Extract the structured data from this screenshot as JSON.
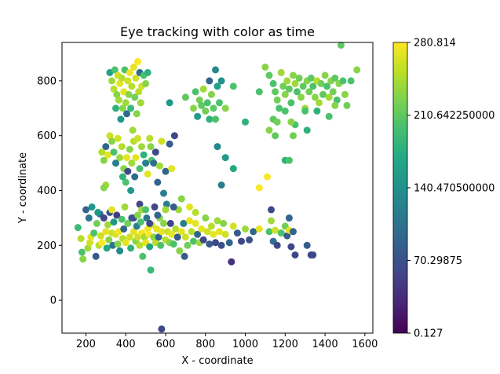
{
  "chart_data": {
    "type": "scatter",
    "title": "Eye tracking with color as time",
    "xlabel": "X - coordinate",
    "ylabel": "Y - coordinate",
    "xlim": [
      80,
      1640
    ],
    "ylim": [
      -120,
      940
    ],
    "xticks": [
      200,
      400,
      600,
      800,
      1000,
      1200,
      1400,
      1600
    ],
    "yticks": [
      0,
      200,
      400,
      600,
      800
    ],
    "grid": false,
    "colorbar": {
      "colormap": "viridis",
      "min": 0.127,
      "max": 280.814,
      "tick_values": [
        0.127,
        70.29875,
        140.4705,
        210.64225,
        280.814
      ],
      "tick_labels": [
        "0.127",
        "70.29875",
        "140.470500000",
        "210.642250000",
        "280.814"
      ]
    },
    "points": [
      [
        580,
        -105,
        60
      ],
      [
        160,
        265,
        190
      ],
      [
        175,
        225,
        250
      ],
      [
        180,
        175,
        200
      ],
      [
        185,
        150,
        230
      ],
      [
        200,
        330,
        90
      ],
      [
        210,
        190,
        240
      ],
      [
        215,
        300,
        110
      ],
      [
        220,
        210,
        260
      ],
      [
        225,
        230,
        270
      ],
      [
        230,
        340,
        150
      ],
      [
        240,
        245,
        200
      ],
      [
        250,
        160,
        80
      ],
      [
        255,
        280,
        220
      ],
      [
        265,
        200,
        250
      ],
      [
        270,
        315,
        90
      ],
      [
        275,
        235,
        260
      ],
      [
        280,
        210,
        280
      ],
      [
        290,
        300,
        60
      ],
      [
        300,
        250,
        270
      ],
      [
        305,
        190,
        170
      ],
      [
        310,
        275,
        240
      ],
      [
        315,
        220,
        230
      ],
      [
        320,
        320,
        70
      ],
      [
        330,
        245,
        260
      ],
      [
        335,
        200,
        110
      ],
      [
        340,
        285,
        150
      ],
      [
        350,
        240,
        265
      ],
      [
        355,
        310,
        50
      ],
      [
        360,
        205,
        230
      ],
      [
        365,
        250,
        275
      ],
      [
        370,
        180,
        130
      ],
      [
        380,
        295,
        200
      ],
      [
        385,
        225,
        250
      ],
      [
        390,
        260,
        90
      ],
      [
        395,
        340,
        240
      ],
      [
        400,
        210,
        270
      ],
      [
        410,
        280,
        220
      ],
      [
        420,
        230,
        260
      ],
      [
        425,
        190,
        180
      ],
      [
        430,
        300,
        80
      ],
      [
        440,
        250,
        270
      ],
      [
        450,
        215,
        230
      ],
      [
        455,
        270,
        120
      ],
      [
        460,
        230,
        260
      ],
      [
        470,
        200,
        250
      ],
      [
        475,
        285,
        200
      ],
      [
        480,
        245,
        275
      ],
      [
        485,
        160,
        200
      ],
      [
        495,
        230,
        240
      ],
      [
        500,
        210,
        270
      ],
      [
        505,
        300,
        110
      ],
      [
        510,
        260,
        275
      ],
      [
        515,
        240,
        280
      ],
      [
        520,
        195,
        160
      ],
      [
        525,
        110,
        190
      ],
      [
        530,
        275,
        260
      ],
      [
        540,
        230,
        230
      ],
      [
        545,
        340,
        60
      ],
      [
        550,
        210,
        250
      ],
      [
        555,
        260,
        270
      ],
      [
        565,
        230,
        90
      ],
      [
        570,
        300,
        230
      ],
      [
        575,
        200,
        200
      ],
      [
        580,
        250,
        270
      ],
      [
        590,
        280,
        230
      ],
      [
        600,
        220,
        250
      ],
      [
        605,
        350,
        120
      ],
      [
        610,
        250,
        260
      ],
      [
        620,
        210,
        230
      ],
      [
        625,
        280,
        60
      ],
      [
        630,
        240,
        270
      ],
      [
        640,
        205,
        200
      ],
      [
        650,
        260,
        250
      ],
      [
        660,
        230,
        80
      ],
      [
        665,
        330,
        240
      ],
      [
        670,
        180,
        230
      ],
      [
        680,
        250,
        270
      ],
      [
        690,
        280,
        120
      ],
      [
        695,
        160,
        80
      ],
      [
        700,
        230,
        260
      ],
      [
        710,
        200,
        220
      ],
      [
        720,
        290,
        270
      ],
      [
        730,
        250,
        250
      ],
      [
        740,
        215,
        200
      ],
      [
        750,
        280,
        270
      ],
      [
        760,
        240,
        90
      ],
      [
        770,
        210,
        240
      ],
      [
        780,
        260,
        270
      ],
      [
        790,
        220,
        60
      ],
      [
        800,
        300,
        230
      ],
      [
        810,
        250,
        260
      ],
      [
        820,
        205,
        80
      ],
      [
        830,
        270,
        250
      ],
      [
        840,
        240,
        270
      ],
      [
        850,
        210,
        60
      ],
      [
        860,
        290,
        240
      ],
      [
        870,
        250,
        270
      ],
      [
        880,
        200,
        70
      ],
      [
        890,
        280,
        230
      ],
      [
        900,
        240,
        260
      ],
      [
        920,
        210,
        90
      ],
      [
        930,
        140,
        40
      ],
      [
        940,
        270,
        260
      ],
      [
        960,
        245,
        80
      ],
      [
        980,
        215,
        60
      ],
      [
        1000,
        260,
        240
      ],
      [
        1020,
        220,
        70
      ],
      [
        1040,
        250,
        90
      ],
      [
        1070,
        260,
        270
      ],
      [
        1120,
        250,
        200
      ],
      [
        1130,
        290,
        240
      ],
      [
        1140,
        215,
        100
      ],
      [
        1150,
        255,
        260
      ],
      [
        1160,
        200,
        60
      ],
      [
        1180,
        245,
        200
      ],
      [
        1200,
        270,
        220
      ],
      [
        1210,
        235,
        80
      ],
      [
        1220,
        255,
        270
      ],
      [
        1230,
        195,
        60
      ],
      [
        1240,
        250,
        90
      ],
      [
        1250,
        165,
        60
      ],
      [
        1310,
        200,
        80
      ],
      [
        1330,
        165,
        50
      ],
      [
        1340,
        165,
        60
      ],
      [
        1130,
        330,
        60
      ],
      [
        1220,
        300,
        90
      ],
      [
        320,
        830,
        160
      ],
      [
        330,
        800,
        240
      ],
      [
        340,
        770,
        250
      ],
      [
        345,
        840,
        200
      ],
      [
        350,
        700,
        180
      ],
      [
        355,
        750,
        230
      ],
      [
        360,
        820,
        260
      ],
      [
        365,
        730,
        240
      ],
      [
        370,
        790,
        270
      ],
      [
        375,
        660,
        150
      ],
      [
        380,
        810,
        250
      ],
      [
        385,
        700,
        230
      ],
      [
        390,
        760,
        270
      ],
      [
        395,
        840,
        200
      ],
      [
        400,
        720,
        240
      ],
      [
        405,
        680,
        100
      ],
      [
        410,
        800,
        260
      ],
      [
        415,
        750,
        230
      ],
      [
        420,
        830,
        275
      ],
      [
        425,
        700,
        190
      ],
      [
        430,
        780,
        250
      ],
      [
        435,
        620,
        240
      ],
      [
        440,
        850,
        270
      ],
      [
        445,
        740,
        220
      ],
      [
        450,
        810,
        260
      ],
      [
        455,
        680,
        230
      ],
      [
        460,
        870,
        280
      ],
      [
        465,
        760,
        250
      ],
      [
        470,
        830,
        100
      ],
      [
        475,
        720,
        240
      ],
      [
        480,
        780,
        260
      ],
      [
        490,
        820,
        200
      ],
      [
        500,
        790,
        230
      ],
      [
        510,
        830,
        180
      ],
      [
        300,
        560,
        90
      ],
      [
        310,
        530,
        270
      ],
      [
        320,
        600,
        260
      ],
      [
        330,
        580,
        230
      ],
      [
        340,
        540,
        200
      ],
      [
        350,
        500,
        120
      ],
      [
        360,
        590,
        260
      ],
      [
        370,
        520,
        240
      ],
      [
        380,
        560,
        250
      ],
      [
        385,
        450,
        180
      ],
      [
        390,
        480,
        230
      ],
      [
        400,
        430,
        200
      ],
      [
        405,
        520,
        270
      ],
      [
        410,
        470,
        60
      ],
      [
        420,
        550,
        230
      ],
      [
        425,
        400,
        150
      ],
      [
        430,
        500,
        240
      ],
      [
        440,
        580,
        250
      ],
      [
        445,
        450,
        100
      ],
      [
        450,
        520,
        270
      ],
      [
        460,
        590,
        260
      ],
      [
        470,
        480,
        200
      ],
      [
        480,
        560,
        240
      ],
      [
        490,
        530,
        180
      ],
      [
        500,
        500,
        120
      ],
      [
        510,
        460,
        270
      ],
      [
        520,
        590,
        250
      ],
      [
        525,
        560,
        230
      ],
      [
        530,
        510,
        200
      ],
      [
        540,
        500,
        100
      ],
      [
        550,
        540,
        60
      ],
      [
        560,
        430,
        90
      ],
      [
        570,
        490,
        240
      ],
      [
        580,
        580,
        260
      ],
      [
        590,
        390,
        120
      ],
      [
        600,
        470,
        90
      ],
      [
        620,
        570,
        80
      ],
      [
        630,
        480,
        270
      ],
      [
        645,
        600,
        60
      ],
      [
        680,
        370,
        230
      ],
      [
        280,
        540,
        250
      ],
      [
        290,
        510,
        230
      ],
      [
        300,
        420,
        240
      ],
      [
        470,
        350,
        60
      ],
      [
        480,
        330,
        240
      ],
      [
        440,
        300,
        70
      ],
      [
        460,
        310,
        230
      ],
      [
        500,
        330,
        200
      ],
      [
        520,
        280,
        60
      ],
      [
        560,
        310,
        90
      ],
      [
        600,
        330,
        240
      ],
      [
        640,
        340,
        80
      ],
      [
        720,
        340,
        270
      ],
      [
        750,
        320,
        250
      ],
      [
        260,
        320,
        150
      ],
      [
        330,
        330,
        270
      ],
      [
        290,
        410,
        230
      ],
      [
        620,
        720,
        150
      ],
      [
        700,
        740,
        210
      ],
      [
        740,
        700,
        230
      ],
      [
        750,
        760,
        200
      ],
      [
        760,
        670,
        150
      ],
      [
        770,
        730,
        220
      ],
      [
        780,
        710,
        210
      ],
      [
        790,
        770,
        240
      ],
      [
        800,
        690,
        220
      ],
      [
        810,
        720,
        200
      ],
      [
        820,
        660,
        180
      ],
      [
        830,
        750,
        230
      ],
      [
        840,
        700,
        210
      ],
      [
        850,
        840,
        130
      ],
      [
        860,
        780,
        160
      ],
      [
        870,
        720,
        200
      ],
      [
        880,
        800,
        140
      ],
      [
        900,
        700,
        230
      ],
      [
        940,
        780,
        200
      ],
      [
        850,
        660,
        200
      ],
      [
        820,
        800,
        90
      ],
      [
        860,
        560,
        130
      ],
      [
        900,
        520,
        150
      ],
      [
        880,
        420,
        120
      ],
      [
        940,
        480,
        170
      ],
      [
        1000,
        650,
        180
      ],
      [
        1070,
        760,
        200
      ],
      [
        1100,
        850,
        230
      ],
      [
        1120,
        820,
        210
      ],
      [
        1140,
        790,
        200
      ],
      [
        1150,
        760,
        210
      ],
      [
        1160,
        730,
        220
      ],
      [
        1170,
        700,
        200
      ],
      [
        1180,
        830,
        240
      ],
      [
        1190,
        780,
        220
      ],
      [
        1200,
        750,
        230
      ],
      [
        1210,
        800,
        240
      ],
      [
        1220,
        770,
        210
      ],
      [
        1230,
        720,
        200
      ],
      [
        1240,
        820,
        230
      ],
      [
        1250,
        790,
        240
      ],
      [
        1260,
        760,
        200
      ],
      [
        1270,
        810,
        220
      ],
      [
        1280,
        740,
        230
      ],
      [
        1290,
        780,
        210
      ],
      [
        1300,
        700,
        240
      ],
      [
        1310,
        800,
        230
      ],
      [
        1320,
        760,
        220
      ],
      [
        1330,
        810,
        210
      ],
      [
        1340,
        780,
        200
      ],
      [
        1350,
        740,
        230
      ],
      [
        1360,
        800,
        250
      ],
      [
        1370,
        720,
        240
      ],
      [
        1380,
        790,
        220
      ],
      [
        1390,
        750,
        210
      ],
      [
        1400,
        820,
        230
      ],
      [
        1410,
        780,
        200
      ],
      [
        1420,
        740,
        240
      ],
      [
        1430,
        800,
        230
      ],
      [
        1440,
        760,
        220
      ],
      [
        1450,
        810,
        210
      ],
      [
        1460,
        730,
        200
      ],
      [
        1470,
        790,
        230
      ],
      [
        1480,
        930,
        210
      ],
      [
        1490,
        800,
        200
      ],
      [
        1500,
        750,
        230
      ],
      [
        1510,
        710,
        220
      ],
      [
        1530,
        800,
        200
      ],
      [
        1560,
        840,
        230
      ],
      [
        1420,
        670,
        200
      ],
      [
        1450,
        710,
        230
      ],
      [
        1360,
        690,
        180
      ],
      [
        1240,
        600,
        220
      ],
      [
        1250,
        640,
        200
      ],
      [
        1200,
        510,
        180
      ],
      [
        1220,
        510,
        200
      ],
      [
        1150,
        600,
        210
      ],
      [
        1120,
        620,
        230
      ],
      [
        1140,
        660,
        210
      ],
      [
        1200,
        690,
        200
      ],
      [
        1160,
        650,
        220
      ],
      [
        1230,
        650,
        230
      ],
      [
        1300,
        690,
        200
      ],
      [
        1310,
        620,
        180
      ],
      [
        1070,
        410,
        280
      ],
      [
        1110,
        450,
        280
      ]
    ]
  }
}
